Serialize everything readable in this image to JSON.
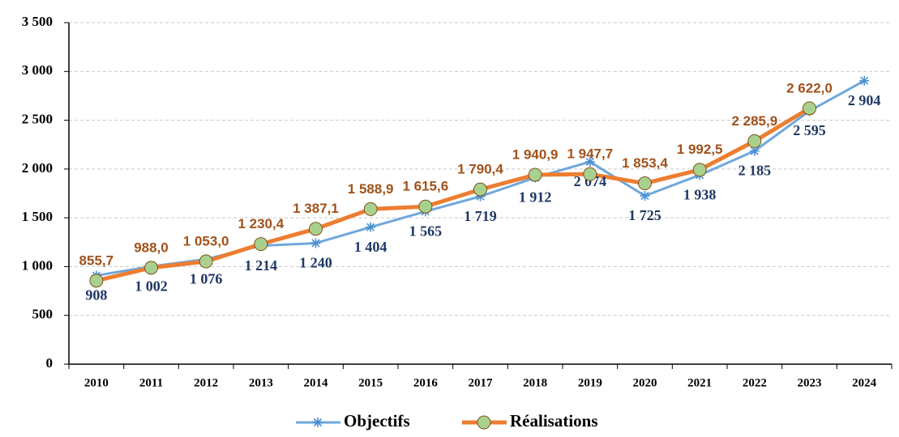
{
  "chart_data": {
    "type": "line",
    "categories": [
      "2010",
      "2011",
      "2012",
      "2013",
      "2014",
      "2015",
      "2016",
      "2017",
      "2018",
      "2019",
      "2020",
      "2021",
      "2022",
      "2023",
      "2024"
    ],
    "series": [
      {
        "name": "Objectifs",
        "color": "#6fa8dc",
        "values": [
          908,
          1002,
          1076,
          1214,
          1240,
          1404,
          1565,
          1719,
          1912,
          2074,
          1725,
          1938,
          2185,
          2595,
          2904
        ],
        "value_labels": [
          "908",
          "1 002",
          "1 076",
          "1 214",
          "1 240",
          "1 404",
          "1 565",
          "1 719",
          "1 912",
          "2 074",
          "1 725",
          "1 938",
          "2 185",
          "2 595",
          "2 904"
        ]
      },
      {
        "name": "Réalisations",
        "color": "#ed7d31",
        "marker_color": "#a9d18e",
        "values": [
          855.7,
          988.0,
          1053.0,
          1230.4,
          1387.1,
          1588.9,
          1615.6,
          1790.4,
          1940.9,
          1947.7,
          1853.4,
          1992.5,
          2285.9,
          2622.0,
          null
        ],
        "value_labels": [
          "855,7",
          "988,0",
          "1 053,0",
          "1 230,4",
          "1 387,1",
          "1 588,9",
          "1 615,6",
          "1 790,4",
          "1 940,9",
          "1 947,7",
          "1 853,4",
          "1 992,5",
          "2 285,9",
          "2 622,0",
          null
        ]
      }
    ],
    "ylim": [
      0,
      3500
    ],
    "yticks": [
      0,
      500,
      {
        "value": 1000,
        "label": "1 000"
      },
      {
        "value": 1500,
        "label": "1 500"
      },
      {
        "value": 2000,
        "label": "2 000"
      },
      {
        "value": 2500,
        "label": "2 500"
      },
      {
        "value": 3000,
        "label": "3 000"
      },
      {
        "value": 3500,
        "label": "3 500"
      }
    ],
    "grid": true,
    "legend": "bottom"
  }
}
